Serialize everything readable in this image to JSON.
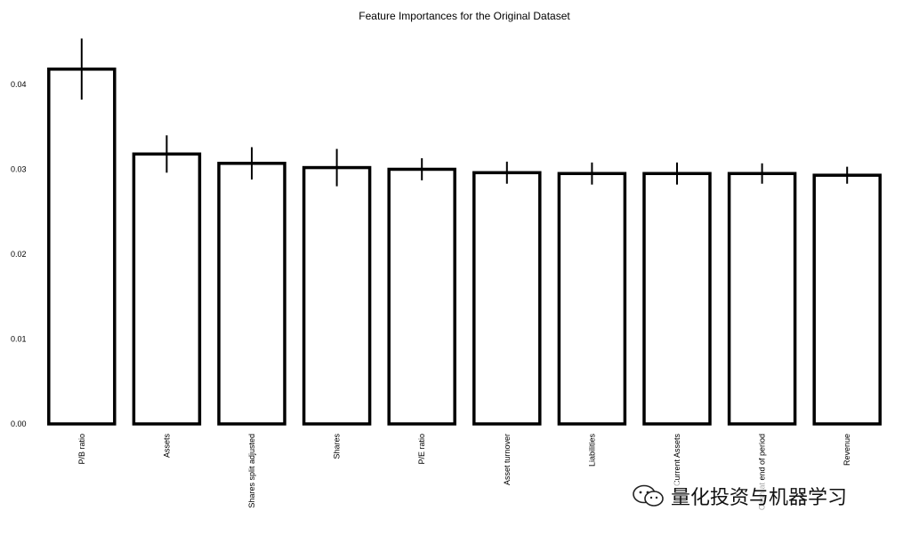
{
  "chart_data": {
    "type": "bar",
    "title": "Feature Importances for the Original Dataset",
    "xlabel": "",
    "ylabel": "",
    "ylim": [
      0,
      0.0445
    ],
    "yticks": [
      "0.00",
      "0.01",
      "0.02",
      "0.03",
      "0.04"
    ],
    "ytick_values": [
      0.0,
      0.01,
      0.02,
      0.03,
      0.04
    ],
    "categories": [
      "P/B ratio",
      "Assets",
      "Shares split adjusted",
      "Shares",
      "P/E ratio",
      "Asset turnover",
      "Liabilities",
      "Current Assets",
      "Cash at end of period",
      "Revenue"
    ],
    "values": [
      0.0418,
      0.0318,
      0.0307,
      0.0302,
      0.03,
      0.0296,
      0.0295,
      0.0295,
      0.0295,
      0.0293
    ],
    "errors": [
      0.0036,
      0.0022,
      0.0019,
      0.0022,
      0.0013,
      0.0013,
      0.0013,
      0.0013,
      0.0012,
      0.001
    ],
    "grid": false
  },
  "watermark": {
    "text": "量化投资与机器学习",
    "icon": "wechat-icon"
  }
}
